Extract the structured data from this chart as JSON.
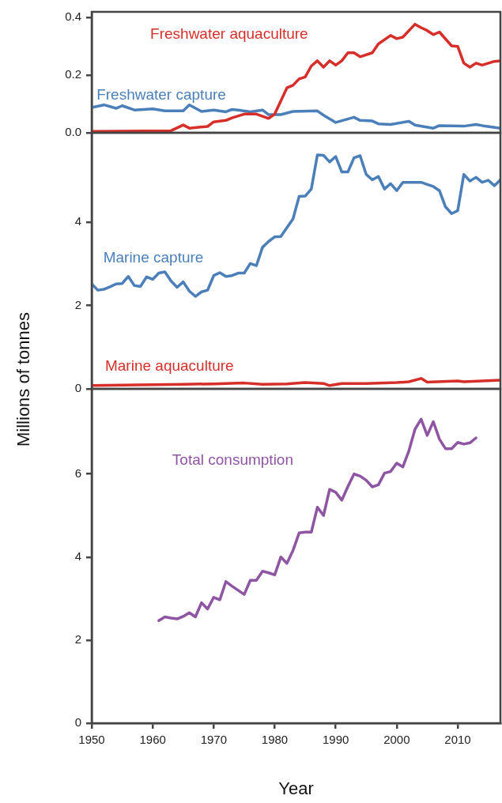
{
  "chart_data": [
    {
      "type": "line",
      "xlim": [
        1950,
        2017
      ],
      "ylim": [
        0,
        0.42
      ],
      "yticks": [
        {
          "value": 0,
          "label": "0.0"
        },
        {
          "value": 0.2,
          "label": "0.2"
        },
        {
          "value": 0.4,
          "label": "0.4"
        }
      ],
      "tick_labels": "y",
      "marker": "none",
      "line_style": "solid",
      "legend": false,
      "grid": false,
      "series": [
        {
          "name": "Freshwater aquaculture",
          "color": "#d62f2a",
          "x": [
            1950,
            1963,
            1965,
            1966,
            1969,
            1970,
            1972,
            1973,
            1975,
            1977,
            1979,
            1980,
            1982,
            1983,
            1984,
            1985,
            1986,
            1987,
            1988,
            1989,
            1990,
            1991,
            1992,
            1993,
            1994,
            1996,
            1997,
            1999,
            2000,
            2001,
            2003,
            2004,
            2005,
            2006,
            2007,
            2009,
            2010,
            2011,
            2012,
            2013,
            2014,
            2016,
            2017
          ],
          "values": [
            0.005,
            0.007,
            0.027,
            0.016,
            0.022,
            0.038,
            0.043,
            0.052,
            0.065,
            0.065,
            0.05,
            0.065,
            0.156,
            0.165,
            0.187,
            0.194,
            0.232,
            0.25,
            0.228,
            0.25,
            0.235,
            0.25,
            0.278,
            0.278,
            0.264,
            0.278,
            0.309,
            0.338,
            0.327,
            0.332,
            0.377,
            0.365,
            0.355,
            0.341,
            0.35,
            0.302,
            0.3,
            0.242,
            0.228,
            0.242,
            0.235,
            0.248,
            0.25
          ]
        },
        {
          "name": "Freshwater capture",
          "color": "#4a7fb9",
          "x": [
            1950,
            1952,
            1954,
            1955,
            1957,
            1960,
            1962,
            1965,
            1966,
            1968,
            1970,
            1972,
            1973,
            1974,
            1976,
            1978,
            1979,
            1981,
            1983,
            1987,
            1988,
            1990,
            1993,
            1994,
            1996,
            1997,
            1999,
            2002,
            2003,
            2006,
            2007,
            2011,
            2013,
            2014,
            2017
          ],
          "values": [
            0.088,
            0.097,
            0.085,
            0.094,
            0.079,
            0.083,
            0.076,
            0.076,
            0.097,
            0.074,
            0.079,
            0.073,
            0.081,
            0.079,
            0.073,
            0.079,
            0.063,
            0.063,
            0.074,
            0.076,
            0.061,
            0.036,
            0.054,
            0.043,
            0.041,
            0.031,
            0.029,
            0.04,
            0.027,
            0.016,
            0.025,
            0.023,
            0.029,
            0.025,
            0.016
          ]
        }
      ]
    },
    {
      "type": "line",
      "ylabel": "Millions of tonnes",
      "xlim": [
        1950,
        2017
      ],
      "ylim": [
        0,
        6.15
      ],
      "yticks": [
        0,
        2,
        4
      ],
      "tick_labels": "y",
      "marker": "none",
      "line_style": "solid",
      "legend": false,
      "grid": false,
      "series": [
        {
          "name": "Marine capture",
          "color": "#4a7fb9",
          "x": [
            1950,
            1951,
            1952,
            1953,
            1954,
            1955,
            1956,
            1957,
            1958,
            1959,
            1960,
            1961,
            1962,
            1963,
            1964,
            1965,
            1966,
            1967,
            1968,
            1969,
            1970,
            1971,
            1972,
            1973,
            1974,
            1975,
            1976,
            1977,
            1978,
            1979,
            1980,
            1981,
            1982,
            1983,
            1984,
            1985,
            1986,
            1987,
            1988,
            1989,
            1990,
            1991,
            1992,
            1993,
            1994,
            1995,
            1996,
            1997,
            1998,
            1999,
            2000,
            2001,
            2002,
            2003,
            2004,
            2005,
            2006,
            2007,
            2008,
            2009,
            2010,
            2011,
            2012,
            2013,
            2014,
            2015,
            2016,
            2017
          ],
          "values": [
            2.52,
            2.37,
            2.39,
            2.45,
            2.52,
            2.53,
            2.7,
            2.48,
            2.46,
            2.69,
            2.63,
            2.78,
            2.81,
            2.59,
            2.44,
            2.57,
            2.35,
            2.22,
            2.33,
            2.37,
            2.72,
            2.79,
            2.7,
            2.72,
            2.78,
            2.78,
            3.01,
            2.96,
            3.4,
            3.54,
            3.65,
            3.66,
            3.87,
            4.08,
            4.62,
            4.63,
            4.8,
            5.62,
            5.61,
            5.45,
            5.58,
            5.21,
            5.21,
            5.55,
            5.6,
            5.15,
            5.02,
            5.1,
            4.8,
            4.93,
            4.76,
            4.96,
            4.96,
            4.96,
            4.96,
            4.91,
            4.86,
            4.76,
            4.37,
            4.21,
            4.28,
            5.15,
            4.99,
            5.08,
            4.96,
            5.01,
            4.88,
            5.02
          ]
        },
        {
          "name": "Marine aquaculture",
          "color": "#d62f2a",
          "x": [
            1950,
            1955,
            1960,
            1965,
            1970,
            1975,
            1978,
            1982,
            1985,
            1988,
            1989,
            1991,
            1995,
            2000,
            2002,
            2004,
            2005,
            2010,
            2011,
            2017
          ],
          "values": [
            0.08,
            0.09,
            0.1,
            0.11,
            0.12,
            0.14,
            0.11,
            0.12,
            0.15,
            0.13,
            0.08,
            0.13,
            0.13,
            0.15,
            0.17,
            0.25,
            0.16,
            0.19,
            0.17,
            0.21
          ]
        }
      ]
    },
    {
      "type": "line",
      "xlabel": "Year",
      "xlim": [
        1950,
        2017
      ],
      "xticks": [
        1950,
        1960,
        1970,
        1980,
        1990,
        2000,
        2010
      ],
      "ylim": [
        0,
        8.05
      ],
      "yticks": [
        0,
        2,
        4,
        6
      ],
      "marker": "none",
      "line_style": "solid",
      "legend": false,
      "grid": false,
      "series": [
        {
          "name": "Total consumption",
          "color": "#8e55a3",
          "x": [
            1961,
            1962,
            1963,
            1964,
            1965,
            1966,
            1967,
            1968,
            1969,
            1970,
            1971,
            1972,
            1973,
            1974,
            1975,
            1976,
            1977,
            1978,
            1979,
            1980,
            1981,
            1982,
            1983,
            1984,
            1985,
            1986,
            1987,
            1988,
            1989,
            1990,
            1991,
            1992,
            1993,
            1994,
            1995,
            1996,
            1997,
            1998,
            1999,
            2000,
            2001,
            2002,
            2003,
            2004,
            2005,
            2006,
            2007,
            2008,
            2009,
            2010,
            2011,
            2012,
            2013
          ],
          "values": [
            2.47,
            2.56,
            2.53,
            2.51,
            2.57,
            2.66,
            2.56,
            2.9,
            2.75,
            3.03,
            2.97,
            3.41,
            3.3,
            3.2,
            3.1,
            3.44,
            3.44,
            3.66,
            3.62,
            3.57,
            4.0,
            3.85,
            4.16,
            4.58,
            4.6,
            4.6,
            5.2,
            5.0,
            5.63,
            5.56,
            5.37,
            5.7,
            6.0,
            5.95,
            5.85,
            5.69,
            5.74,
            6.02,
            6.06,
            6.26,
            6.17,
            6.56,
            7.08,
            7.32,
            6.93,
            7.26,
            6.84,
            6.61,
            6.61,
            6.76,
            6.72,
            6.75,
            6.87
          ]
        }
      ]
    }
  ]
}
